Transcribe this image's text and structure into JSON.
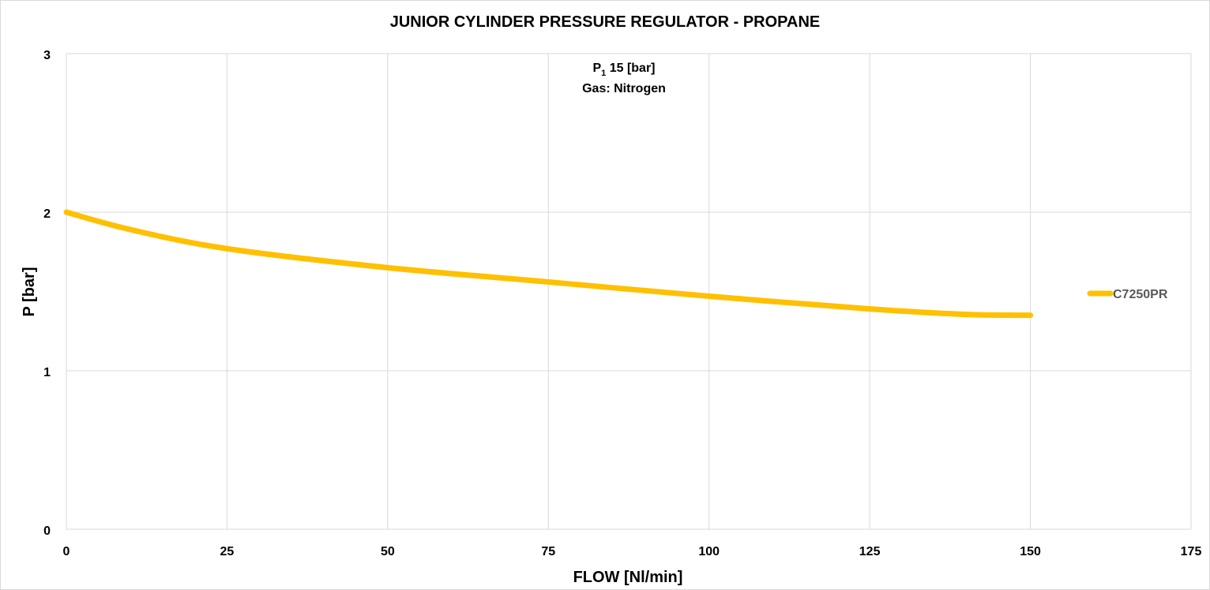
{
  "chart_data": {
    "type": "line",
    "title": "JUNIOR CYLINDER PRESSURE REGULATOR - PROPANE",
    "xlabel": "FLOW [Nl/min]",
    "ylabel": "P [bar]",
    "xlim": [
      0,
      175
    ],
    "ylim": [
      0,
      3
    ],
    "xticks": [
      "0",
      "25",
      "50",
      "75",
      "100",
      "125",
      "150",
      "175"
    ],
    "yticks": [
      "0",
      "1",
      "2",
      "3"
    ],
    "grid": true,
    "legend_position": "right",
    "annotation": {
      "line1_prefix": "P",
      "line1_sub": "1",
      "line1_rest": " 15 [bar]",
      "line2": "Gas: Nitrogen"
    },
    "series": [
      {
        "name": "C7250PR",
        "color": "#FFC000",
        "x": [
          0,
          10,
          25,
          50,
          75,
          100,
          125,
          140,
          150
        ],
        "y": [
          2.0,
          1.89,
          1.77,
          1.65,
          1.56,
          1.47,
          1.39,
          1.355,
          1.35
        ]
      }
    ]
  }
}
